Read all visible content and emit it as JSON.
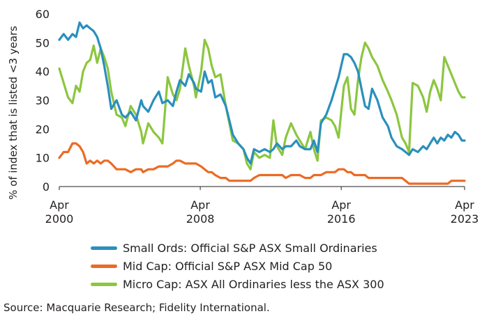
{
  "chart_data": {
    "type": "line",
    "ylabel": "% of index that is listed <3 years",
    "ylim": [
      0,
      60
    ],
    "yticks": [
      0,
      10,
      20,
      30,
      40,
      50,
      60
    ],
    "xlim": [
      2000.25,
      2023.25
    ],
    "xticks": [
      {
        "value": 2000.25,
        "line1": "Apr",
        "line2": "2000"
      },
      {
        "value": 2008.25,
        "line1": "Apr",
        "line2": "2008"
      },
      {
        "value": 2016.25,
        "line1": "Apr",
        "line2": "2016"
      },
      {
        "value": 2023.25,
        "line1": "Apr",
        "line2": "2023"
      }
    ],
    "grid": false,
    "legend_position": "bottom",
    "series": [
      {
        "name": "Micro Cap: ASX All Ordinaries less the ASX 300",
        "color": "#8cc63f",
        "points": [
          [
            2000.25,
            41
          ],
          [
            2000.5,
            36
          ],
          [
            2000.75,
            31
          ],
          [
            2001.0,
            29
          ],
          [
            2001.2,
            35
          ],
          [
            2001.4,
            33
          ],
          [
            2001.6,
            40
          ],
          [
            2001.8,
            43
          ],
          [
            2002.0,
            44
          ],
          [
            2002.2,
            49
          ],
          [
            2002.4,
            43
          ],
          [
            2002.6,
            48
          ],
          [
            2002.8,
            45
          ],
          [
            2003.0,
            41
          ],
          [
            2003.2,
            33
          ],
          [
            2003.5,
            25
          ],
          [
            2003.8,
            24
          ],
          [
            2004.0,
            21
          ],
          [
            2004.3,
            28
          ],
          [
            2004.6,
            25
          ],
          [
            2004.9,
            19
          ],
          [
            2005.0,
            15
          ],
          [
            2005.3,
            22
          ],
          [
            2005.6,
            19
          ],
          [
            2005.9,
            17
          ],
          [
            2006.1,
            15
          ],
          [
            2006.4,
            38
          ],
          [
            2006.7,
            32
          ],
          [
            2006.9,
            30
          ],
          [
            2007.1,
            34
          ],
          [
            2007.4,
            48
          ],
          [
            2007.6,
            42
          ],
          [
            2007.9,
            35
          ],
          [
            2008.0,
            31
          ],
          [
            2008.3,
            40
          ],
          [
            2008.5,
            51
          ],
          [
            2008.7,
            48
          ],
          [
            2008.9,
            42
          ],
          [
            2009.1,
            38
          ],
          [
            2009.4,
            39
          ],
          [
            2009.7,
            28
          ],
          [
            2009.9,
            22
          ],
          [
            2010.1,
            16
          ],
          [
            2010.4,
            15
          ],
          [
            2010.7,
            13
          ],
          [
            2010.9,
            8
          ],
          [
            2011.1,
            6
          ],
          [
            2011.3,
            12
          ],
          [
            2011.6,
            10
          ],
          [
            2011.9,
            11
          ],
          [
            2012.2,
            10
          ],
          [
            2012.4,
            23
          ],
          [
            2012.6,
            14
          ],
          [
            2012.9,
            11
          ],
          [
            2013.1,
            17
          ],
          [
            2013.4,
            22
          ],
          [
            2013.7,
            18
          ],
          [
            2013.9,
            16
          ],
          [
            2014.2,
            13
          ],
          [
            2014.5,
            19
          ],
          [
            2014.7,
            13
          ],
          [
            2014.9,
            9
          ],
          [
            2015.1,
            23
          ],
          [
            2015.4,
            24
          ],
          [
            2015.7,
            23
          ],
          [
            2015.9,
            21
          ],
          [
            2016.1,
            17
          ],
          [
            2016.4,
            35
          ],
          [
            2016.6,
            38
          ],
          [
            2016.8,
            27
          ],
          [
            2017.0,
            25
          ],
          [
            2017.2,
            37
          ],
          [
            2017.4,
            45
          ],
          [
            2017.6,
            50
          ],
          [
            2017.8,
            48
          ],
          [
            2018.0,
            45
          ],
          [
            2018.3,
            42
          ],
          [
            2018.6,
            37
          ],
          [
            2018.9,
            33
          ],
          [
            2019.1,
            30
          ],
          [
            2019.4,
            25
          ],
          [
            2019.7,
            17
          ],
          [
            2019.9,
            15
          ],
          [
            2020.1,
            12
          ],
          [
            2020.3,
            36
          ],
          [
            2020.6,
            35
          ],
          [
            2020.9,
            31
          ],
          [
            2021.1,
            26
          ],
          [
            2021.3,
            33
          ],
          [
            2021.5,
            37
          ],
          [
            2021.7,
            34
          ],
          [
            2021.9,
            30
          ],
          [
            2022.1,
            45
          ],
          [
            2022.3,
            42
          ],
          [
            2022.5,
            39
          ],
          [
            2022.7,
            36
          ],
          [
            2022.9,
            33
          ],
          [
            2023.1,
            31
          ],
          [
            2023.25,
            31
          ]
        ]
      },
      {
        "name": "Small Ords: Official S&P ASX Small Ordinaries",
        "color": "#2a8fbd",
        "points": [
          [
            2000.25,
            51
          ],
          [
            2000.5,
            53
          ],
          [
            2000.75,
            51
          ],
          [
            2001.0,
            53
          ],
          [
            2001.2,
            52
          ],
          [
            2001.4,
            57
          ],
          [
            2001.6,
            55
          ],
          [
            2001.8,
            56
          ],
          [
            2002.0,
            55
          ],
          [
            2002.2,
            54
          ],
          [
            2002.4,
            52
          ],
          [
            2002.6,
            48
          ],
          [
            2002.8,
            42
          ],
          [
            2003.0,
            35
          ],
          [
            2003.2,
            27
          ],
          [
            2003.5,
            30
          ],
          [
            2003.8,
            25
          ],
          [
            2004.0,
            24
          ],
          [
            2004.3,
            26
          ],
          [
            2004.6,
            23
          ],
          [
            2004.9,
            30
          ],
          [
            2005.0,
            28
          ],
          [
            2005.3,
            26
          ],
          [
            2005.6,
            30
          ],
          [
            2005.9,
            33
          ],
          [
            2006.1,
            29
          ],
          [
            2006.4,
            30
          ],
          [
            2006.7,
            28
          ],
          [
            2006.9,
            33
          ],
          [
            2007.1,
            37
          ],
          [
            2007.4,
            35
          ],
          [
            2007.6,
            39
          ],
          [
            2007.9,
            36
          ],
          [
            2008.0,
            34
          ],
          [
            2008.3,
            33
          ],
          [
            2008.5,
            40
          ],
          [
            2008.7,
            36
          ],
          [
            2008.9,
            37
          ],
          [
            2009.1,
            31
          ],
          [
            2009.4,
            32
          ],
          [
            2009.7,
            28
          ],
          [
            2009.9,
            23
          ],
          [
            2010.1,
            18
          ],
          [
            2010.4,
            15
          ],
          [
            2010.7,
            13
          ],
          [
            2010.9,
            10
          ],
          [
            2011.1,
            8
          ],
          [
            2011.3,
            13
          ],
          [
            2011.6,
            12
          ],
          [
            2011.9,
            13
          ],
          [
            2012.2,
            12
          ],
          [
            2012.4,
            13
          ],
          [
            2012.6,
            15
          ],
          [
            2012.9,
            13
          ],
          [
            2013.1,
            14
          ],
          [
            2013.4,
            14
          ],
          [
            2013.7,
            16
          ],
          [
            2013.9,
            14
          ],
          [
            2014.2,
            13
          ],
          [
            2014.5,
            13
          ],
          [
            2014.7,
            16
          ],
          [
            2014.9,
            12
          ],
          [
            2015.1,
            22
          ],
          [
            2015.4,
            25
          ],
          [
            2015.7,
            30
          ],
          [
            2015.9,
            34
          ],
          [
            2016.1,
            38
          ],
          [
            2016.4,
            46
          ],
          [
            2016.6,
            46
          ],
          [
            2016.8,
            45
          ],
          [
            2017.0,
            43
          ],
          [
            2017.2,
            40
          ],
          [
            2017.4,
            34
          ],
          [
            2017.6,
            28
          ],
          [
            2017.8,
            27
          ],
          [
            2018.0,
            34
          ],
          [
            2018.3,
            30
          ],
          [
            2018.6,
            24
          ],
          [
            2018.9,
            21
          ],
          [
            2019.1,
            17
          ],
          [
            2019.4,
            14
          ],
          [
            2019.7,
            13
          ],
          [
            2019.9,
            12
          ],
          [
            2020.1,
            11
          ],
          [
            2020.3,
            13
          ],
          [
            2020.6,
            12
          ],
          [
            2020.9,
            14
          ],
          [
            2021.1,
            13
          ],
          [
            2021.3,
            15
          ],
          [
            2021.5,
            17
          ],
          [
            2021.7,
            15
          ],
          [
            2021.9,
            17
          ],
          [
            2022.1,
            16
          ],
          [
            2022.3,
            18
          ],
          [
            2022.5,
            17
          ],
          [
            2022.7,
            19
          ],
          [
            2022.9,
            18
          ],
          [
            2023.1,
            16
          ],
          [
            2023.25,
            16
          ]
        ]
      },
      {
        "name": "Mid Cap: Official S&P ASX Mid Cap 50",
        "color": "#ec6a23",
        "points": [
          [
            2000.25,
            10
          ],
          [
            2000.5,
            12
          ],
          [
            2000.75,
            12
          ],
          [
            2001.0,
            15
          ],
          [
            2001.2,
            15
          ],
          [
            2001.4,
            14
          ],
          [
            2001.6,
            12
          ],
          [
            2001.8,
            8
          ],
          [
            2002.0,
            9
          ],
          [
            2002.2,
            8
          ],
          [
            2002.4,
            9
          ],
          [
            2002.6,
            8
          ],
          [
            2002.8,
            9
          ],
          [
            2003.0,
            9
          ],
          [
            2003.2,
            8
          ],
          [
            2003.5,
            6
          ],
          [
            2003.8,
            6
          ],
          [
            2004.0,
            6
          ],
          [
            2004.3,
            5
          ],
          [
            2004.6,
            6
          ],
          [
            2004.9,
            6
          ],
          [
            2005.0,
            5
          ],
          [
            2005.3,
            6
          ],
          [
            2005.6,
            6
          ],
          [
            2005.9,
            7
          ],
          [
            2006.1,
            7
          ],
          [
            2006.4,
            7
          ],
          [
            2006.7,
            8
          ],
          [
            2006.9,
            9
          ],
          [
            2007.1,
            9
          ],
          [
            2007.4,
            8
          ],
          [
            2007.6,
            8
          ],
          [
            2007.9,
            8
          ],
          [
            2008.0,
            8
          ],
          [
            2008.3,
            7
          ],
          [
            2008.5,
            6
          ],
          [
            2008.7,
            5
          ],
          [
            2008.9,
            5
          ],
          [
            2009.1,
            4
          ],
          [
            2009.4,
            3
          ],
          [
            2009.7,
            3
          ],
          [
            2009.9,
            2
          ],
          [
            2010.1,
            2
          ],
          [
            2010.4,
            2
          ],
          [
            2010.7,
            2
          ],
          [
            2010.9,
            2
          ],
          [
            2011.1,
            2
          ],
          [
            2011.3,
            3
          ],
          [
            2011.6,
            4
          ],
          [
            2011.9,
            4
          ],
          [
            2012.2,
            4
          ],
          [
            2012.4,
            4
          ],
          [
            2012.6,
            4
          ],
          [
            2012.9,
            4
          ],
          [
            2013.1,
            3
          ],
          [
            2013.4,
            4
          ],
          [
            2013.7,
            4
          ],
          [
            2013.9,
            4
          ],
          [
            2014.2,
            3
          ],
          [
            2014.5,
            3
          ],
          [
            2014.7,
            4
          ],
          [
            2014.9,
            4
          ],
          [
            2015.1,
            4
          ],
          [
            2015.4,
            5
          ],
          [
            2015.7,
            5
          ],
          [
            2015.9,
            5
          ],
          [
            2016.1,
            6
          ],
          [
            2016.4,
            6
          ],
          [
            2016.6,
            5
          ],
          [
            2016.8,
            5
          ],
          [
            2017.0,
            4
          ],
          [
            2017.2,
            4
          ],
          [
            2017.4,
            4
          ],
          [
            2017.6,
            4
          ],
          [
            2017.8,
            3
          ],
          [
            2018.0,
            3
          ],
          [
            2018.3,
            3
          ],
          [
            2018.6,
            3
          ],
          [
            2018.9,
            3
          ],
          [
            2019.1,
            3
          ],
          [
            2019.4,
            3
          ],
          [
            2019.7,
            3
          ],
          [
            2019.9,
            2
          ],
          [
            2020.1,
            1
          ],
          [
            2020.3,
            1
          ],
          [
            2020.6,
            1
          ],
          [
            2020.9,
            1
          ],
          [
            2021.1,
            1
          ],
          [
            2021.3,
            1
          ],
          [
            2021.5,
            1
          ],
          [
            2021.7,
            1
          ],
          [
            2021.9,
            1
          ],
          [
            2022.1,
            1
          ],
          [
            2022.3,
            1
          ],
          [
            2022.5,
            2
          ],
          [
            2022.7,
            2
          ],
          [
            2022.9,
            2
          ],
          [
            2023.1,
            2
          ],
          [
            2023.25,
            2
          ]
        ]
      }
    ],
    "legend": [
      {
        "label": "Small Ords: Official S&P ASX Small Ordinaries",
        "color": "#2a8fbd"
      },
      {
        "label": "Mid Cap: Official S&P ASX Mid Cap 50",
        "color": "#ec6a23"
      },
      {
        "label": "Micro Cap: ASX All Ordinaries less the ASX 300",
        "color": "#8cc63f"
      }
    ]
  },
  "source": "Source: Macquarie Research; Fidelity International."
}
